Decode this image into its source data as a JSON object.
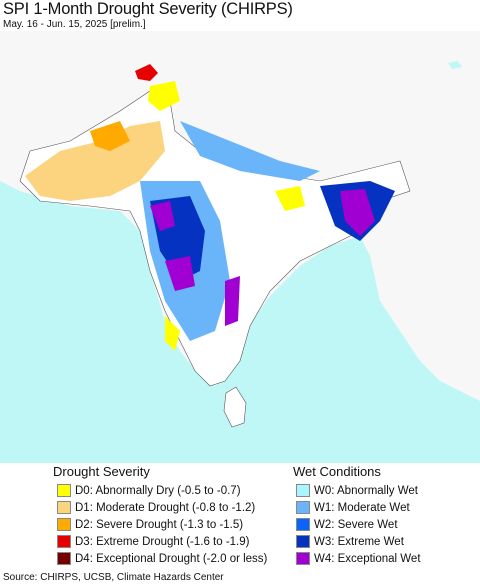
{
  "header": {
    "title": "SPI 1-Month Drought Severity (CHIRPS)",
    "subtitle": "May. 16 - Jun. 15, 2025 [prelim.]"
  },
  "map": {
    "ocean_color": "#bff7f7",
    "land_color": "#ffffff"
  },
  "legend": {
    "drought": {
      "title": "Drought Severity",
      "items": [
        {
          "label": "D0: Abnormally Dry (-0.5 to -0.7)",
          "color": "#ffff00"
        },
        {
          "label": "D1: Moderate Drought (-0.8 to -1.2)",
          "color": "#fcd37f"
        },
        {
          "label": "D2: Severe Drought (-1.3 to -1.5)",
          "color": "#ffaa00"
        },
        {
          "label": "D3: Extreme Drought (-1.6 to -1.9)",
          "color": "#e60000"
        },
        {
          "label": "D4: Exceptional Drought (-2.0 or less)",
          "color": "#730000"
        }
      ]
    },
    "wet": {
      "title": "Wet Conditions",
      "items": [
        {
          "label": "W0: Abnormally Wet",
          "color": "#aaf5ff"
        },
        {
          "label": "W1: Moderate Wet",
          "color": "#6ab4fa"
        },
        {
          "label": "W2: Severe Wet",
          "color": "#0a64fa"
        },
        {
          "label": "W3: Extreme Wet",
          "color": "#0532c0"
        },
        {
          "label": "W4: Exceptional Wet",
          "color": "#a000d2"
        }
      ]
    }
  },
  "footer": {
    "source": "Source: CHIRPS, UCSB, Climate Hazards Center"
  }
}
